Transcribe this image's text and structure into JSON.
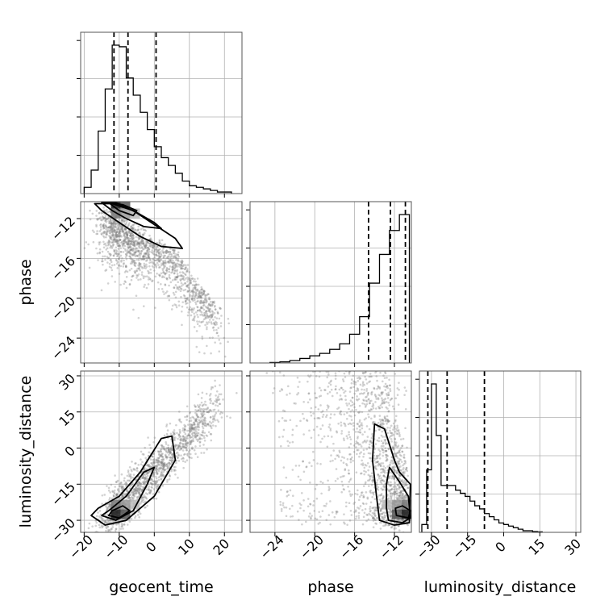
{
  "chart_data": {
    "type": "corner",
    "parameters": [
      "geocent_time",
      "phase",
      "luminosity_distance"
    ],
    "axis_labels": {
      "x": [
        "geocent_time",
        "phase",
        "luminosity_distance"
      ],
      "y": [
        "phase",
        "luminosity_distance"
      ]
    },
    "ranges": {
      "geocent_time": [
        -21,
        25
      ],
      "phase": [
        -26.5,
        -10.3
      ],
      "luminosity_distance": [
        -35,
        32
      ]
    },
    "ticks": {
      "geocent_time": [
        -20,
        -10,
        0,
        10,
        20
      ],
      "phase": [
        -24,
        -20,
        -16,
        -12
      ],
      "luminosity_distance": [
        -30,
        -15,
        0,
        15,
        30
      ]
    },
    "tick_labels": {
      "geocent_time": [
        "−20",
        "−10",
        "0",
        "10",
        "20"
      ],
      "phase": [
        "−24",
        "−20",
        "−16",
        "−12"
      ],
      "luminosity_distance": [
        "−30",
        "−15",
        "0",
        "15",
        "30"
      ]
    },
    "quantiles": {
      "geocent_time": [
        -11.5,
        -7.5,
        0.5
      ],
      "phase": [
        -14.6,
        -12.4,
        -10.9
      ],
      "luminosity_distance": [
        -31.5,
        -23.5,
        -8.0
      ]
    },
    "histograms": {
      "geocent_time": {
        "edges": [
          -20,
          -18,
          -16,
          -14,
          -12,
          -10,
          -8,
          -6,
          -4,
          -2,
          0,
          2,
          4,
          6,
          8,
          10,
          12,
          14,
          16,
          18,
          20,
          22
        ],
        "counts": [
          0.04,
          0.15,
          0.4,
          0.67,
          0.95,
          0.94,
          0.74,
          0.63,
          0.52,
          0.41,
          0.3,
          0.23,
          0.18,
          0.13,
          0.08,
          0.05,
          0.04,
          0.03,
          0.02,
          0.01,
          0.01
        ]
      },
      "phase": {
        "edges": [
          -24.5,
          -23.5,
          -22.5,
          -21.5,
          -20.5,
          -19.5,
          -18.5,
          -17.5,
          -16.5,
          -15.5,
          -14.5,
          -13.5,
          -12.5,
          -11.5,
          -10.5
        ],
        "counts": [
          0.003,
          0.007,
          0.015,
          0.028,
          0.045,
          0.06,
          0.085,
          0.12,
          0.18,
          0.29,
          0.5,
          0.68,
          0.83,
          0.93
        ]
      },
      "luminosity_distance": {
        "edges": [
          -34,
          -32,
          -30,
          -28,
          -26,
          -24,
          -22,
          -20,
          -18,
          -16,
          -14,
          -12,
          -10,
          -8,
          -6,
          -4,
          -2,
          0,
          2,
          4,
          6,
          8,
          10,
          12,
          14,
          16
        ],
        "counts": [
          0.05,
          0.4,
          0.95,
          0.62,
          0.3,
          0.3,
          0.3,
          0.27,
          0.25,
          0.23,
          0.2,
          0.17,
          0.15,
          0.12,
          0.1,
          0.08,
          0.06,
          0.05,
          0.04,
          0.03,
          0.02,
          0.01,
          0.01,
          0.005,
          0.003
        ]
      }
    },
    "panels": [
      {
        "x": "geocent_time",
        "y": "phase",
        "peak": [
          -11,
          -10.5
        ],
        "correlation": "negative"
      },
      {
        "x": "geocent_time",
        "y": "luminosity_distance",
        "peak": [
          -11,
          -27.5
        ],
        "correlation": "positive"
      },
      {
        "x": "phase",
        "y": "luminosity_distance",
        "peak": [
          -10.8,
          -27.5
        ],
        "correlation": "negative"
      }
    ],
    "grid": true
  }
}
